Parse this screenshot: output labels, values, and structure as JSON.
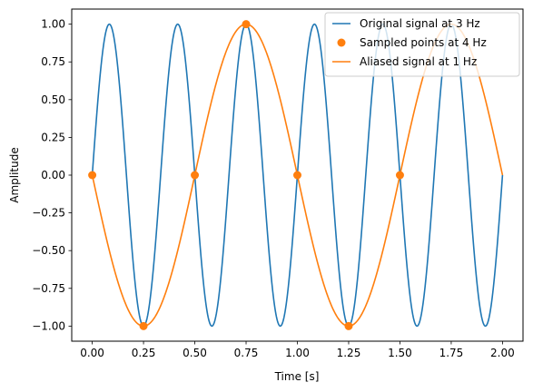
{
  "chart_data": {
    "type": "line",
    "xlabel": "Time [s]",
    "ylabel": "Amplitude",
    "xlim": [
      -0.1,
      2.1
    ],
    "ylim": [
      -1.1,
      1.1
    ],
    "xticks": [
      0.0,
      0.25,
      0.5,
      0.75,
      1.0,
      1.25,
      1.5,
      1.75,
      2.0
    ],
    "xtick_labels": [
      "0.00",
      "0.25",
      "0.50",
      "0.75",
      "1.00",
      "1.25",
      "1.50",
      "1.75",
      "2.00"
    ],
    "yticks": [
      -1.0,
      -0.75,
      -0.5,
      -0.25,
      0.0,
      0.25,
      0.5,
      0.75,
      1.0
    ],
    "ytick_labels": [
      "−1.00",
      "−0.75",
      "−0.50",
      "−0.25",
      "0.00",
      "0.25",
      "0.50",
      "0.75",
      "1.00"
    ],
    "grid": false,
    "legend_position": "top-right",
    "series": [
      {
        "name": "Original signal at 3 Hz",
        "kind": "line",
        "color": "#1f77b4",
        "function": "sin",
        "frequency_hz": 3,
        "amplitude": 1,
        "x_range": [
          0,
          2
        ]
      },
      {
        "name": "Sampled points at 4 Hz",
        "kind": "scatter",
        "color": "#ff7f0e",
        "x": [
          0.0,
          0.25,
          0.5,
          0.75,
          1.0,
          1.25,
          1.5
        ],
        "y": [
          0.0,
          -1.0,
          0.0,
          1.0,
          0.0,
          -1.0,
          0.0
        ]
      },
      {
        "name": "Aliased signal at 1 Hz",
        "kind": "line",
        "color": "#ff7f0e",
        "function": "-sin",
        "frequency_hz": 1,
        "amplitude": 1,
        "x_range": [
          0,
          2
        ]
      }
    ]
  }
}
